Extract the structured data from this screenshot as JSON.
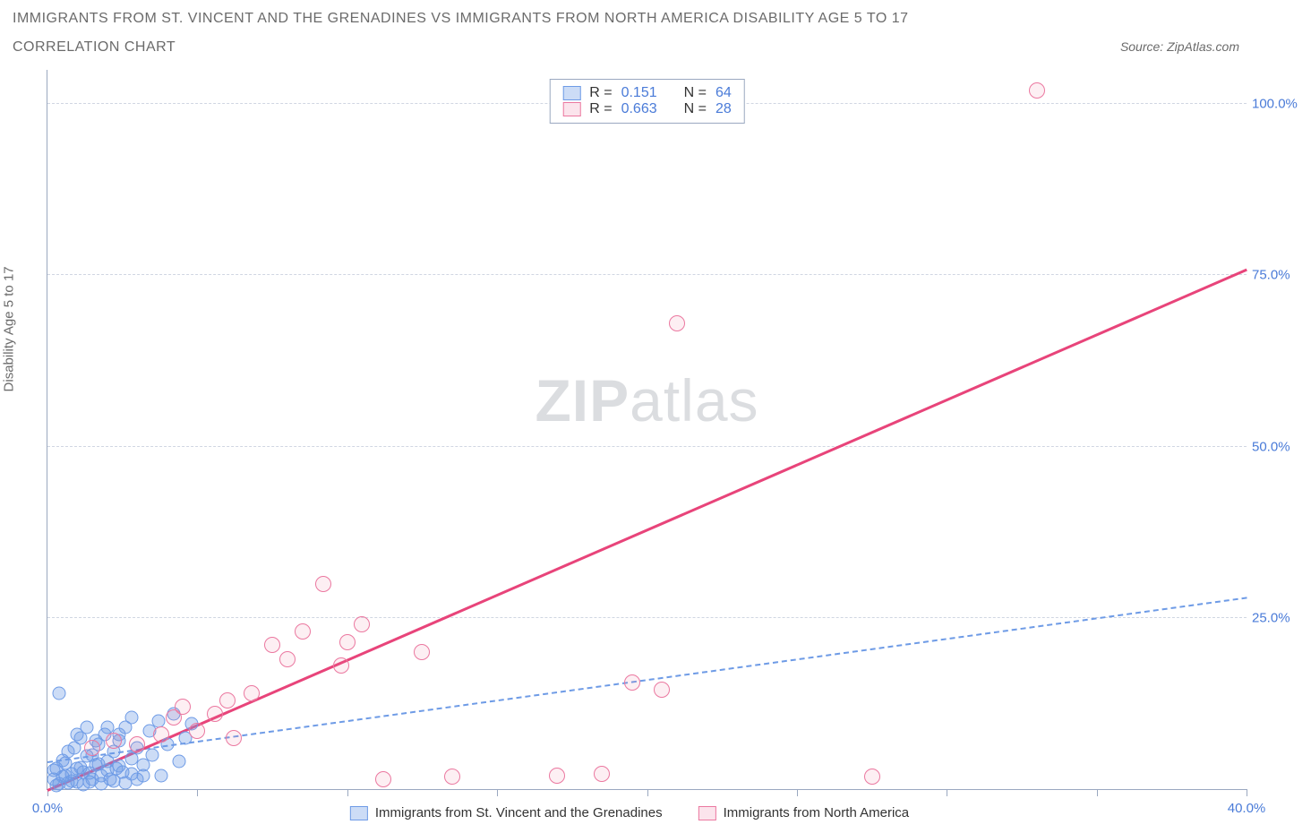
{
  "title_main": "IMMIGRANTS FROM ST. VINCENT AND THE GRENADINES VS IMMIGRANTS FROM NORTH AMERICA DISABILITY AGE 5 TO 17",
  "title_sub": "CORRELATION CHART",
  "source_prefix": "Source: ",
  "source_name": "ZipAtlas.com",
  "y_axis_label": "Disability Age 5 to 17",
  "watermark_a": "ZIP",
  "watermark_b": "atlas",
  "chart": {
    "type": "scatter",
    "x_domain": [
      0,
      40
    ],
    "y_domain": [
      0,
      105
    ],
    "x_ticks": [
      0,
      5,
      10,
      15,
      20,
      25,
      30,
      35,
      40
    ],
    "x_tick_labels": {
      "0": "0.0%",
      "40": "40.0%"
    },
    "y_ticks": [
      25,
      50,
      75,
      100
    ],
    "y_tick_labels": {
      "25": "25.0%",
      "50": "50.0%",
      "75": "75.0%",
      "100": "100.0%"
    },
    "gridline_color": "#d0d6e2",
    "axis_color": "#9aa8c0",
    "background_color": "#ffffff",
    "label_color": "#4a7bd8",
    "marker_size_blue": 15,
    "marker_size_pink": 18,
    "series": [
      {
        "key": "blue",
        "label": "Immigrants from St. Vincent and the Grenadines",
        "color_fill": "rgba(110,155,230,0.35)",
        "color_stroke": "#6e9be6",
        "R": "0.151",
        "N": "64",
        "trend": {
          "x1": 0,
          "y1": 4,
          "x2": 40,
          "y2": 28,
          "style": "dashed",
          "width": 2
        },
        "points": [
          [
            0.2,
            1.5
          ],
          [
            0.3,
            3.0
          ],
          [
            0.4,
            0.8
          ],
          [
            0.5,
            4.2
          ],
          [
            0.6,
            2.0
          ],
          [
            0.7,
            5.5
          ],
          [
            0.8,
            1.2
          ],
          [
            0.9,
            6.0
          ],
          [
            1.0,
            3.0
          ],
          [
            1.1,
            7.5
          ],
          [
            1.2,
            2.5
          ],
          [
            1.3,
            4.8
          ],
          [
            1.4,
            1.0
          ],
          [
            1.5,
            5.0
          ],
          [
            1.6,
            3.5
          ],
          [
            1.7,
            6.5
          ],
          [
            1.8,
            2.0
          ],
          [
            1.9,
            8.0
          ],
          [
            2.0,
            4.0
          ],
          [
            2.1,
            1.5
          ],
          [
            2.2,
            5.5
          ],
          [
            2.3,
            3.0
          ],
          [
            2.4,
            7.0
          ],
          [
            2.5,
            2.5
          ],
          [
            2.6,
            9.0
          ],
          [
            2.8,
            4.5
          ],
          [
            3.0,
            6.0
          ],
          [
            3.2,
            3.5
          ],
          [
            3.4,
            8.5
          ],
          [
            3.5,
            5.0
          ],
          [
            3.7,
            10.0
          ],
          [
            3.8,
            2.0
          ],
          [
            4.0,
            6.5
          ],
          [
            4.2,
            11.0
          ],
          [
            4.4,
            4.0
          ],
          [
            4.6,
            7.5
          ],
          [
            4.8,
            9.5
          ],
          [
            0.4,
            14.0
          ],
          [
            1.0,
            8.0
          ],
          [
            1.3,
            9.0
          ],
          [
            1.6,
            7.0
          ],
          [
            2.0,
            9.0
          ],
          [
            2.4,
            8.0
          ],
          [
            2.8,
            10.5
          ],
          [
            0.2,
            2.8
          ],
          [
            0.3,
            0.5
          ],
          [
            0.5,
            1.8
          ],
          [
            0.6,
            3.8
          ],
          [
            0.7,
            0.9
          ],
          [
            0.8,
            2.2
          ],
          [
            1.0,
            1.0
          ],
          [
            1.1,
            3.2
          ],
          [
            1.2,
            0.6
          ],
          [
            1.4,
            2.4
          ],
          [
            1.5,
            1.4
          ],
          [
            1.7,
            3.6
          ],
          [
            1.8,
            0.8
          ],
          [
            2.0,
            2.8
          ],
          [
            2.2,
            1.2
          ],
          [
            2.4,
            3.4
          ],
          [
            2.6,
            0.9
          ],
          [
            2.8,
            2.2
          ],
          [
            3.0,
            1.5
          ],
          [
            3.2,
            2.0
          ]
        ]
      },
      {
        "key": "pink",
        "label": "Immigrants from North America",
        "color_fill": "rgba(235,120,160,0.12)",
        "color_stroke": "#eb78a0",
        "R": "0.663",
        "N": "28",
        "trend": {
          "x1": 0,
          "y1": 0,
          "x2": 40,
          "y2": 76,
          "style": "solid",
          "width": 3
        },
        "points": [
          [
            1.5,
            6.0
          ],
          [
            2.2,
            7.0
          ],
          [
            3.0,
            6.5
          ],
          [
            3.8,
            8.0
          ],
          [
            4.5,
            12.0
          ],
          [
            5.0,
            8.5
          ],
          [
            5.6,
            11.0
          ],
          [
            6.2,
            7.5
          ],
          [
            6.8,
            14.0
          ],
          [
            7.5,
            21.0
          ],
          [
            8.0,
            19.0
          ],
          [
            8.5,
            23.0
          ],
          [
            9.2,
            30.0
          ],
          [
            10.0,
            21.5
          ],
          [
            10.5,
            24.0
          ],
          [
            12.5,
            20.0
          ],
          [
            11.2,
            1.5
          ],
          [
            13.5,
            1.8
          ],
          [
            17.0,
            2.0
          ],
          [
            18.5,
            2.2
          ],
          [
            19.5,
            15.5
          ],
          [
            20.5,
            14.5
          ],
          [
            21.0,
            68.0
          ],
          [
            27.5,
            1.8
          ],
          [
            33.0,
            102.0
          ],
          [
            4.2,
            10.5
          ],
          [
            6.0,
            13.0
          ],
          [
            9.8,
            18.0
          ]
        ]
      }
    ]
  },
  "stats_legend": {
    "r_label": "R =",
    "n_label": "N ="
  }
}
